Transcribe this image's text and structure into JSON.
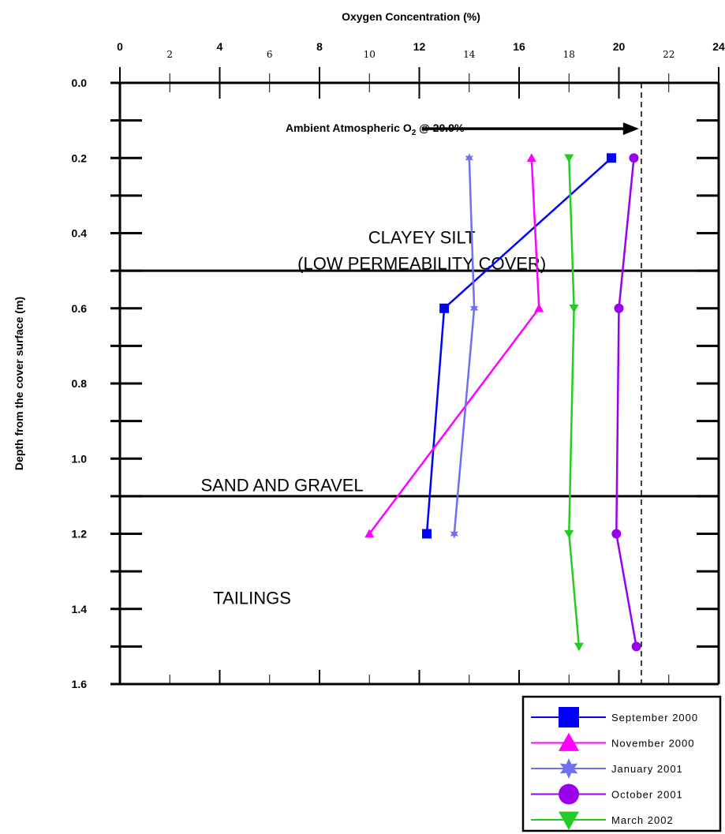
{
  "chart_data": {
    "type": "line",
    "title": "",
    "xlabel": "Oxygen Concentration (%)",
    "ylabel": "Depth from the cover surface (m)",
    "xlim": [
      0,
      24
    ],
    "ylim": [
      0.0,
      1.6
    ],
    "x_axis_position": "top",
    "y_axis_inverted": true,
    "x_major_ticks": [
      "0",
      "4",
      "8",
      "12",
      "16",
      "20",
      "24"
    ],
    "x_minor_ticks": [
      "2",
      "6",
      "10",
      "14",
      "18",
      "22"
    ],
    "y_ticks": [
      "0.0",
      "0.2",
      "0.4",
      "0.6",
      "0.8",
      "1.0",
      "1.2",
      "1.4",
      "1.6"
    ],
    "grid": false,
    "legend_position": "bottom-right, below plot",
    "series": [
      {
        "name": "September 2000",
        "color": "#0000ff",
        "marker": "square",
        "points": [
          {
            "x": 19.7,
            "y": 0.2
          },
          {
            "x": 13.0,
            "y": 0.6
          },
          {
            "x": 12.3,
            "y": 1.2
          }
        ]
      },
      {
        "name": "November 2000",
        "color": "#ff00ff",
        "marker": "triangle-up",
        "points": [
          {
            "x": 16.5,
            "y": 0.2
          },
          {
            "x": 16.8,
            "y": 0.6
          },
          {
            "x": 10.0,
            "y": 1.2
          }
        ]
      },
      {
        "name": "January 2001",
        "color": "#6f6ff0",
        "marker": "star",
        "points": [
          {
            "x": 14.0,
            "y": 0.2
          },
          {
            "x": 14.2,
            "y": 0.6
          },
          {
            "x": 13.4,
            "y": 1.2
          }
        ]
      },
      {
        "name": "October 2001",
        "color": "#9900ee",
        "marker": "circle",
        "points": [
          {
            "x": 20.6,
            "y": 0.2
          },
          {
            "x": 20.0,
            "y": 0.6
          },
          {
            "x": 19.9,
            "y": 1.2
          },
          {
            "x": 20.7,
            "y": 1.5
          }
        ]
      },
      {
        "name": "March 2002",
        "color": "#22cc22",
        "marker": "triangle-down",
        "points": [
          {
            "x": 18.0,
            "y": 0.2
          },
          {
            "x": 18.2,
            "y": 0.6
          },
          {
            "x": 18.0,
            "y": 1.2
          },
          {
            "x": 18.4,
            "y": 1.5
          }
        ]
      }
    ],
    "reference_lines": [
      {
        "axis": "x",
        "value": 20.9,
        "style": "dashed"
      },
      {
        "axis": "y",
        "value": 0.5,
        "style": "solid"
      },
      {
        "axis": "y",
        "value": 1.1,
        "style": "solid"
      }
    ],
    "annotations": {
      "ambient_prefix": "Ambient Atmospheric O",
      "ambient_subscript": "2",
      "ambient_suffix": " @ 20.9%",
      "ambient_y": 0.12,
      "ambient_arrow_x": [
        12.1,
        20.8
      ],
      "layers": [
        {
          "lines": [
            "CLAYEY SILT",
            "(LOW PERMEABILITY COVER)"
          ],
          "x": 12.1,
          "y": [
            0.41,
            0.48
          ]
        },
        {
          "lines": [
            "SAND AND GRAVEL"
          ],
          "x": 6.5,
          "y": [
            1.07
          ]
        },
        {
          "lines": [
            "TAILINGS"
          ],
          "x": 5.3,
          "y": [
            1.37
          ]
        }
      ]
    }
  }
}
